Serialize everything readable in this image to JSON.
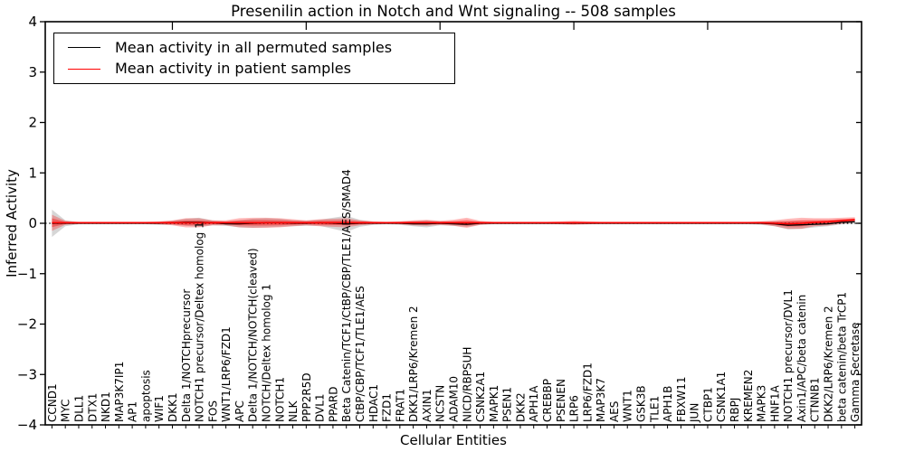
{
  "chart_data": {
    "type": "line",
    "title": "Presenilin action in Notch and Wnt signaling -- 508 samples",
    "xlabel": "Cellular Entities",
    "ylabel": "Inferred Activity",
    "ylim": [
      -4,
      4
    ],
    "yticks": [
      4,
      3,
      2,
      1,
      0,
      -1,
      -2,
      -3,
      -4
    ],
    "grid": false,
    "legend_position": "upper left",
    "zero_line_style": "dotted",
    "x_tick_labels_rotated": 90,
    "categories": [
      "CCND1",
      "MYC",
      "DLL1",
      "DTX1",
      "NKD1",
      "MAP3K7IP1",
      "AP1",
      "apoptosis",
      "WIF1",
      "DKK1",
      "Delta 1/NOTCHprecursor",
      "NOTCH1 precursor/Deltex homolog 1",
      "FOS",
      "WNT1/LRP6/FZD1",
      "APC",
      "Delta 1/NOTCH/NOTCH(cleaved)",
      "NOTCH/Deltex homolog 1",
      "NOTCH1",
      "NLK",
      "PPP2R5D",
      "DVL1",
      "PPARD",
      "Beta Catenin/TCF1/CtBP/CBP/TLE1/AES/SMAD4",
      "CtBP/CBP/TCF1/TLE1/AES",
      "HDAC1",
      "FZD1",
      "FRAT1",
      "DKK1/LRP6/Kremen 2",
      "AXIN1",
      "NCSTN",
      "ADAM10",
      "NICD/RBPSUH",
      "CSNK2A1",
      "MAPK1",
      "PSEN1",
      "DKK2",
      "APH1A",
      "CREBBP",
      "PSENEN",
      "LRP6",
      "LRP6/FZD1",
      "MAP3K7",
      "AES",
      "WNT1",
      "GSK3B",
      "TLE1",
      "APH1B",
      "FBXW11",
      "JUN",
      "CTBP1",
      "CSNK1A1",
      "RBPJ",
      "KREMEN2",
      "MAPK3",
      "HNF1A",
      "NOTCH1 precursor/DVL1",
      "Axin1/APC/beta catenin",
      "CTNNB1",
      "DKK2/LRP6/Kremen 2",
      "beta catenin/beta TrCP1",
      "Gamma Secretase"
    ],
    "series": [
      {
        "name": "Mean activity in all permuted samples",
        "color": "#000000",
        "band_color": "#999999",
        "values": [
          0,
          0,
          0,
          0,
          0,
          0,
          0,
          0,
          0,
          0.01,
          0.02,
          0.02,
          0.01,
          -0.01,
          -0.01,
          0,
          0.01,
          0.01,
          0,
          0,
          0.01,
          0,
          -0.01,
          0,
          0,
          0,
          0,
          -0.01,
          -0.01,
          0,
          -0.01,
          -0.02,
          0,
          0,
          0,
          0,
          0,
          0,
          0,
          0,
          0,
          0,
          0,
          0,
          0,
          0,
          0,
          0,
          0,
          0,
          0,
          0,
          0,
          0,
          -0.01,
          -0.04,
          -0.03,
          -0.02,
          -0.01,
          0.02,
          0.03
        ],
        "band": [
          0.27,
          0.06,
          0.02,
          0.02,
          0.02,
          0.02,
          0.02,
          0.02,
          0.03,
          0.04,
          0.07,
          0.09,
          0.05,
          0.04,
          0.07,
          0.09,
          0.09,
          0.08,
          0.06,
          0.05,
          0.06,
          0.11,
          0.16,
          0.07,
          0.03,
          0.02,
          0.03,
          0.05,
          0.07,
          0.04,
          0.04,
          0.05,
          0.03,
          0.02,
          0.02,
          0.02,
          0.02,
          0.02,
          0.02,
          0.02,
          0.02,
          0.02,
          0.02,
          0.02,
          0.02,
          0.02,
          0.02,
          0.02,
          0.02,
          0.02,
          0.02,
          0.02,
          0.02,
          0.03,
          0.05,
          0.08,
          0.08,
          0.06,
          0.05,
          0.04,
          0.04
        ]
      },
      {
        "name": "Mean activity in patient samples",
        "color": "#ff0000",
        "band_color": "#ff0000",
        "values": [
          0.01,
          0.01,
          0.01,
          0.01,
          0.01,
          0.01,
          0.01,
          0.01,
          0.01,
          0.01,
          0.01,
          0.01,
          0.01,
          0.01,
          0.01,
          0.01,
          0.01,
          0.01,
          0.01,
          0.01,
          0.01,
          0.01,
          0.01,
          0.01,
          0.01,
          0.01,
          0.01,
          0.01,
          0.01,
          0.01,
          0.01,
          0.01,
          0.01,
          0.01,
          0.01,
          0.01,
          0.01,
          0.01,
          0.01,
          0.01,
          0.01,
          0.01,
          0.01,
          0.01,
          0.01,
          0.01,
          0.01,
          0.01,
          0.01,
          0.01,
          0.01,
          0.01,
          0.01,
          0.01,
          0,
          -0.01,
          0,
          0.02,
          0.03,
          0.05,
          0.07
        ],
        "band": [
          0.16,
          0.04,
          0.02,
          0.02,
          0.02,
          0.02,
          0.02,
          0.02,
          0.03,
          0.05,
          0.09,
          0.09,
          0.05,
          0.05,
          0.09,
          0.1,
          0.1,
          0.09,
          0.07,
          0.05,
          0.07,
          0.08,
          0.09,
          0.05,
          0.03,
          0.02,
          0.03,
          0.05,
          0.06,
          0.04,
          0.06,
          0.1,
          0.04,
          0.02,
          0.02,
          0.02,
          0.02,
          0.02,
          0.03,
          0.04,
          0.03,
          0.02,
          0.02,
          0.02,
          0.02,
          0.02,
          0.02,
          0.02,
          0.02,
          0.02,
          0.02,
          0.02,
          0.02,
          0.03,
          0.06,
          0.1,
          0.11,
          0.08,
          0.07,
          0.06,
          0.05
        ]
      }
    ]
  }
}
